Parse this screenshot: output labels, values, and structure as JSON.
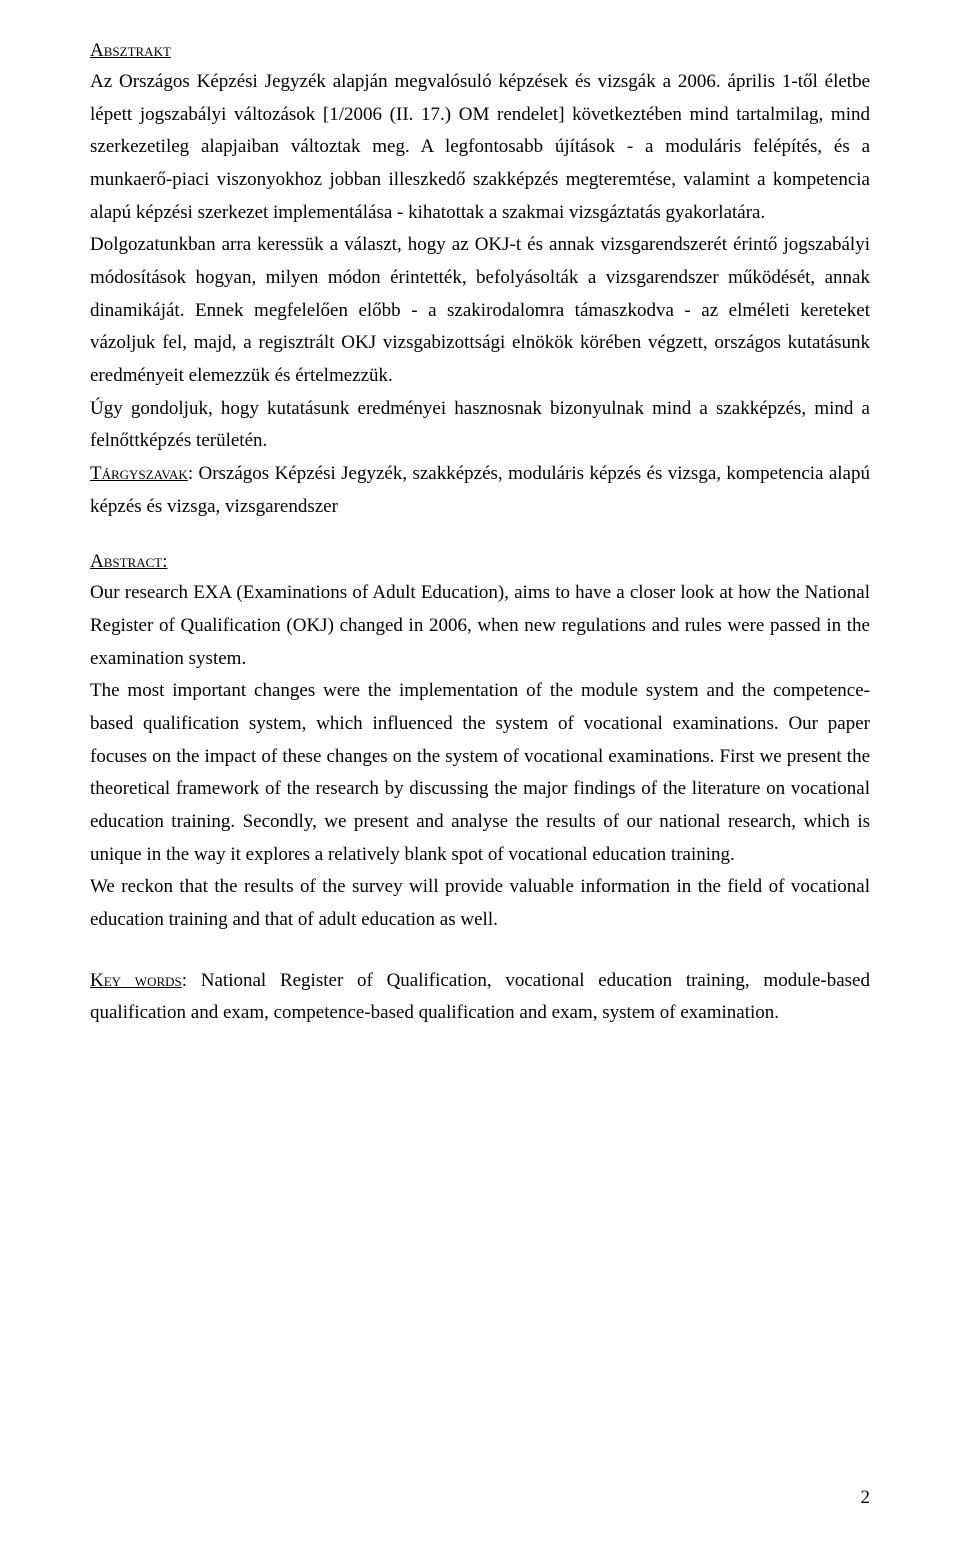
{
  "headings": {
    "absztrakt": "Absztrakt",
    "abstract": "Abstract:"
  },
  "labels": {
    "targyszavak": "Tárgyszavak",
    "keywords": "Key words"
  },
  "paragraphs": {
    "hu1": "Az Országos Képzési Jegyzék alapján megvalósuló képzések és vizsgák a 2006. április 1-től életbe lépett jogszabályi változások [1/2006 (II. 17.) OM rendelet] következtében mind tartalmilag, mind szerkezetileg alapjaiban változtak meg. A legfontosabb újítások - a moduláris felépítés, és a munkaerő-piaci viszonyokhoz jobban illeszkedő szakképzés megteremtése, valamint a kompetencia alapú képzési szerkezet implementálása - kihatottak a szakmai vizsgáztatás gyakorlatára.",
    "hu2": "Dolgozatunkban arra keressük a választ, hogy az OKJ-t és annak vizsgarendszerét érintő jogszabályi módosítások hogyan, milyen módon érintették, befolyásolták a vizsgarendszer működését, annak dinamikáját. Ennek megfelelően előbb - a szakirodalomra támaszkodva - az elméleti kereteket vázoljuk fel, majd, a regisztrált OKJ vizsgabizottsági elnökök körében végzett, országos kutatásunk eredményeit elemezzük és értelmezzük.",
    "hu3": "Úgy gondoljuk, hogy kutatásunk eredményei hasznosnak bizonyulnak mind a szakképzés, mind a felnőttképzés területén.",
    "hu_targy_rest": ": Országos Képzési Jegyzék, szakképzés, moduláris képzés és vizsga, kompetencia alapú képzés és vizsga, vizsgarendszer",
    "en1": "Our research EXA (Examinations of Adult Education), aims to have a closer look at how the National Register of Qualification (OKJ) changed in 2006, when new regulations and rules were passed in the examination system.",
    "en2": "The most important changes were the implementation of the module system and the competence-based qualification system, which influenced the system of vocational examinations. Our paper focuses on the impact of these changes on the system of vocational examinations. First we present the theoretical framework of the research by discussing the major findings of the literature on vocational education training. Secondly, we present and analyse the results of our national research, which is unique in the way it explores a relatively blank spot of vocational education training.",
    "en3": "We reckon that the results of the survey will provide valuable information in the field of vocational education training and that of adult education as well.",
    "en_kw_rest": ": National Register of Qualification, vocational education training, module-based qualification and exam, competence-based qualification and exam, system of examination."
  },
  "page_number": "2"
}
